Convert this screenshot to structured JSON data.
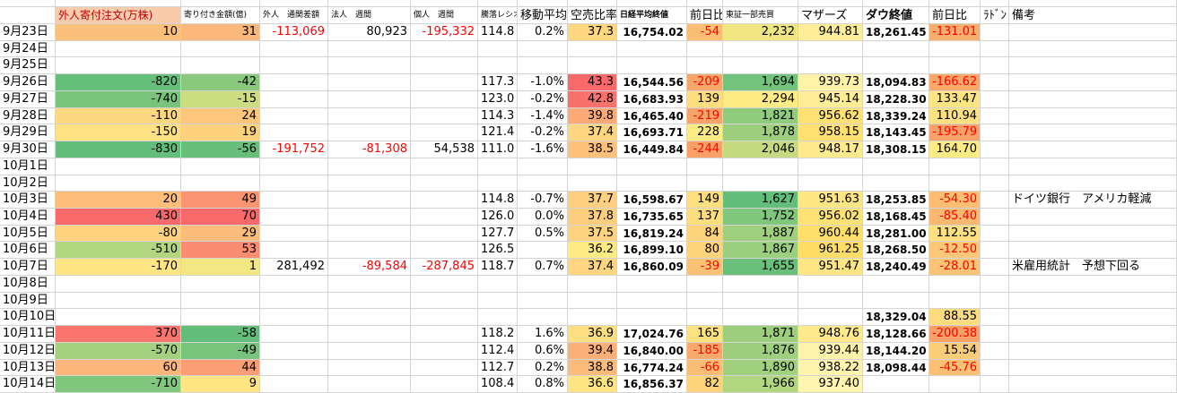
{
  "header": {
    "columns": [
      "",
      "外人寄付注文(万株)",
      "寄り付き金額(億)",
      "外人　通関差額",
      "法人　週間",
      "個人　週間",
      "騰落レシオ",
      "移動平均",
      "空売比率",
      "日経平均終値",
      "前日比",
      "東証一部売買",
      "マザーズ",
      "ダウ終値",
      "前日比",
      "ﾗﾄﾞﾝ",
      "備考"
    ]
  },
  "table": {
    "rows": [
      [
        "9月23日",
        "10",
        "31",
        "-113,069",
        "80,923",
        "-195,332",
        "114.8",
        "0.2%",
        "37.3",
        "16,754.02",
        "-54",
        "2,232",
        "944.81",
        "18,261.45",
        "-131.01",
        null,
        null
      ],
      [
        "9月24日",
        null,
        null,
        null,
        null,
        null,
        null,
        null,
        null,
        null,
        null,
        null,
        null,
        null,
        null,
        null,
        null
      ],
      [
        "9月25日",
        null,
        null,
        null,
        null,
        null,
        null,
        null,
        null,
        null,
        null,
        null,
        null,
        null,
        null,
        null,
        null
      ],
      [
        "9月26日",
        "-820",
        "-42",
        null,
        null,
        null,
        "117.3",
        "-1.0%",
        "43.3",
        "16,544.56",
        "-209",
        "1,694",
        "939.73",
        "18,094.83",
        "-166.62",
        null,
        null
      ],
      [
        "9月27日",
        "-740",
        "-15",
        null,
        null,
        null,
        "123.0",
        "-0.2%",
        "42.8",
        "16,683.93",
        "139",
        "2,294",
        "945.14",
        "18,228.30",
        "133.47",
        null,
        null
      ],
      [
        "9月28日",
        "-110",
        "24",
        null,
        null,
        null,
        "114.3",
        "-1.4%",
        "39.8",
        "16,465.40",
        "-219",
        "1,821",
        "956.62",
        "18,339.24",
        "110.94",
        null,
        null
      ],
      [
        "9月29日",
        "-150",
        "19",
        null,
        null,
        null,
        "121.4",
        "-0.2%",
        "37.4",
        "16,693.71",
        "228",
        "1,878",
        "958.15",
        "18,143.45",
        "-195.79",
        null,
        null
      ],
      [
        "9月30日",
        "-830",
        "-56",
        "-191,752",
        "-81,308",
        "54,538",
        "111.0",
        "-1.6%",
        "38.5",
        "16,449.84",
        "-244",
        "2,046",
        "948.17",
        "18,308.15",
        "164.70",
        null,
        null
      ],
      [
        "10月1日",
        null,
        null,
        null,
        null,
        null,
        null,
        null,
        null,
        null,
        null,
        null,
        null,
        null,
        null,
        null,
        null
      ],
      [
        "10月2日",
        null,
        null,
        null,
        null,
        null,
        null,
        null,
        null,
        null,
        null,
        null,
        null,
        null,
        null,
        null,
        null
      ],
      [
        "10月3日",
        "20",
        "49",
        null,
        null,
        null,
        "114.8",
        "-0.7%",
        "37.7",
        "16,598.67",
        "149",
        "1,627",
        "951.63",
        "18,253.85",
        "-54.30",
        null,
        "ドイツ銀行　アメリカ軽減"
      ],
      [
        "10月4日",
        "430",
        "70",
        null,
        null,
        null,
        "126.0",
        "0.0%",
        "37.8",
        "16,735.65",
        "137",
        "1,752",
        "956.02",
        "18,168.45",
        "-85.40",
        null,
        null
      ],
      [
        "10月5日",
        "-80",
        "29",
        null,
        null,
        null,
        "127.7",
        "0.5%",
        "37.5",
        "16,819.24",
        "84",
        "1,887",
        "960.44",
        "18,281.00",
        "112.55",
        null,
        null
      ],
      [
        "10月6日",
        "-510",
        "53",
        null,
        null,
        null,
        "126.5",
        null,
        "36.2",
        "16,899.10",
        "80",
        "1,867",
        "961.25",
        "18,268.50",
        "-12.50",
        null,
        null
      ],
      [
        "10月7日",
        "-170",
        "1",
        "281,492",
        "-89,584",
        "-287,845",
        "118.7",
        "0.7%",
        "37.4",
        "16,860.09",
        "-39",
        "1,655",
        "951.47",
        "18,240.49",
        "-28.01",
        null,
        "米雇用統計　予想下回る"
      ],
      [
        "10月8日",
        null,
        null,
        null,
        null,
        null,
        null,
        null,
        null,
        null,
        null,
        null,
        null,
        null,
        null,
        null,
        null
      ],
      [
        "10月9日",
        null,
        null,
        null,
        null,
        null,
        null,
        null,
        null,
        null,
        null,
        null,
        null,
        null,
        null,
        null,
        null
      ],
      [
        "10月10日",
        null,
        null,
        null,
        null,
        null,
        null,
        null,
        null,
        null,
        null,
        null,
        null,
        "18,329.04",
        "88.55",
        null,
        null
      ],
      [
        "10月11日",
        "370",
        "-58",
        null,
        null,
        null,
        "118.2",
        "1.6%",
        "36.9",
        "17,024.76",
        "165",
        "1,871",
        "948.76",
        "18,128.66",
        "-200.38",
        null,
        null
      ],
      [
        "10月12日",
        "-570",
        "-49",
        null,
        null,
        null,
        "112.4",
        "0.6%",
        "39.4",
        "16,840.00",
        "-185",
        "1,876",
        "939.44",
        "18,144.20",
        "15.54",
        null,
        null
      ],
      [
        "10月13日",
        "60",
        "44",
        null,
        null,
        null,
        "112.7",
        "0.2%",
        "38.8",
        "16,774.24",
        "-66",
        "1,890",
        "938.22",
        "18,098.44",
        "-45.76",
        null,
        null
      ],
      [
        "10月14日",
        "-710",
        "9",
        null,
        null,
        null,
        "108.4",
        "0.8%",
        "36.6",
        "16,856.37",
        "82",
        "1,966",
        "937.40",
        null,
        null,
        null,
        null
      ]
    ]
  },
  "color_scales": {
    "1": [
      "#63be7b",
      "#ffeb84",
      "#f8696b"
    ],
    "2": [
      "#63be7b",
      "#ffeb84",
      "#f8696b"
    ],
    "8": [
      "#ffeb84",
      "#f8696b"
    ],
    "10": [
      "#f8a068",
      "#ffeb84"
    ],
    "11": [
      "#63be7b",
      "#ffeb84"
    ],
    "12": [
      "#fff4b0",
      "#ffdd66"
    ],
    "14": [
      "#f8a068",
      "#ffeb84"
    ]
  },
  "red_negative_columns": [
    3,
    4,
    5,
    10,
    14
  ],
  "bold_columns": [
    9,
    13
  ]
}
